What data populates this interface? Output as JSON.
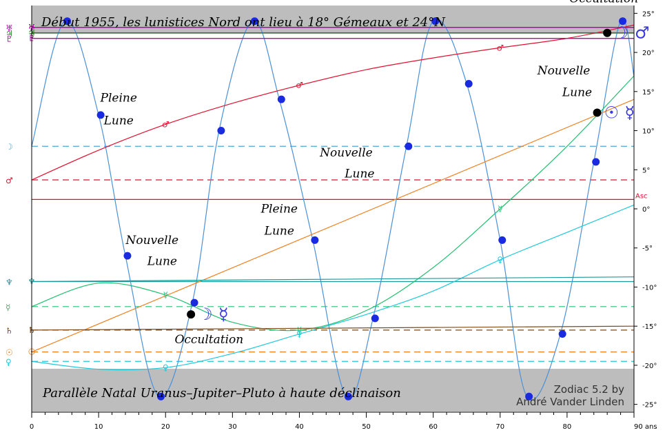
{
  "chart_data": {
    "type": "line",
    "title": "Début 1955, les lunistices Nord ont lieu à 18° Gémeaux et 24°N",
    "subtitle": "Parallèle Natal Uranus–Jupiter–Pluto à haute déclinaison",
    "credit_line1": "Zodiac 5.2 by",
    "credit_line2": "André Vander Linden",
    "x_unit": "ans",
    "xlim": [
      0,
      90
    ],
    "ylim": [
      -26,
      26
    ],
    "x_ticks": [
      0,
      10,
      20,
      30,
      40,
      50,
      60,
      70,
      80,
      90
    ],
    "y_ticks": [
      25,
      20,
      15,
      10,
      5,
      0,
      -5,
      -10,
      -15,
      -20,
      -25
    ],
    "grid": false,
    "natal_lines": [
      {
        "glyph": "♅",
        "value": 23.2,
        "color": "#b000b0",
        "style": "solid"
      },
      {
        "glyph": "♃",
        "value": 22.5,
        "color": "#1a7a1a",
        "style": "solid"
      },
      {
        "glyph": "♇",
        "value": 21.8,
        "color": "#b000b0",
        "style": "solid"
      },
      {
        "glyph": "☽",
        "value": 8.0,
        "color": "#4aa8d8",
        "style": "dashed"
      },
      {
        "glyph": "♂",
        "value": 3.7,
        "color": "#e01030",
        "style": "dashed"
      },
      {
        "glyph": "Asc",
        "value": 1.2,
        "color": "#e01030",
        "style": "solid"
      },
      {
        "glyph": "♆",
        "value": -9.3,
        "color": "#1a9a9a",
        "style": "solid"
      },
      {
        "glyph": "☿",
        "value": -12.5,
        "color": "#22c070",
        "style": "dashed"
      },
      {
        "glyph": "♄",
        "value": -15.5,
        "color": "#7a4a1a",
        "style": "dashed"
      },
      {
        "glyph": "☉",
        "value": -18.3,
        "color": "#f08020",
        "style": "dashed"
      },
      {
        "glyph": "♀",
        "value": -19.5,
        "color": "#20c8d8",
        "style": "dashed"
      }
    ],
    "series": [
      {
        "name": "☽",
        "color": "#4a90d8",
        "x": [
          0,
          5,
          10,
          14,
          19,
          24,
          28,
          33,
          37,
          42,
          47,
          51,
          56,
          60,
          65,
          70,
          74,
          79,
          84,
          88,
          90
        ],
        "y": [
          8,
          24,
          12,
          -6,
          -24,
          -12,
          10,
          24,
          14,
          -4,
          -24,
          -14,
          8,
          24,
          16,
          -4,
          -24,
          -16,
          6,
          24,
          17
        ]
      },
      {
        "name": "♂",
        "color": "#e01030",
        "x": [
          0,
          10,
          20,
          30,
          40,
          50,
          60,
          70,
          80,
          90
        ],
        "y": [
          3.7,
          7.5,
          10.8,
          13.5,
          15.8,
          17.8,
          19.3,
          20.6,
          21.8,
          23.5
        ]
      },
      {
        "name": "☉",
        "color": "#f08020",
        "x": [
          0,
          90
        ],
        "y": [
          -18.3,
          14
        ]
      },
      {
        "name": "☿",
        "color": "#22c070",
        "x": [
          0,
          10,
          20,
          30,
          40,
          50,
          60,
          70,
          80,
          90
        ],
        "y": [
          -12.5,
          -9.5,
          -11,
          -14.5,
          -15.5,
          -13,
          -7.5,
          0,
          8,
          17
        ]
      },
      {
        "name": "♀",
        "color": "#20c8d8",
        "x": [
          0,
          10,
          20,
          30,
          40,
          50,
          60,
          70,
          80,
          90
        ],
        "y": [
          -19.5,
          -20.5,
          -20.3,
          -18.5,
          -16,
          -13.5,
          -10.5,
          -6.5,
          -3,
          0.5
        ]
      },
      {
        "name": "♆",
        "color": "#1a9a9a",
        "x": [
          0,
          90
        ],
        "y": [
          -9.3,
          -8.7
        ]
      },
      {
        "name": "♄",
        "color": "#7a4a1a",
        "x": [
          0,
          90
        ],
        "y": [
          -15.5,
          -15
        ]
      },
      {
        "name": "♅",
        "color": "#b000b0",
        "x": [
          0,
          90
        ],
        "y": [
          23.2,
          23.2
        ]
      },
      {
        "name": "♃",
        "color": "#1a7a1a",
        "x": [
          0,
          90
        ],
        "y": [
          22.5,
          22.5
        ]
      },
      {
        "name": "♇",
        "color": "#b000b0",
        "x": [
          0,
          90
        ],
        "y": [
          21.8,
          21.8
        ]
      }
    ],
    "annotations": [
      {
        "text": "Pleine",
        "x": 13,
        "y": 13.7
      },
      {
        "text": "Lune",
        "x": 13,
        "y": 10.8
      },
      {
        "text": "Nouvelle",
        "x": 47,
        "y": 6.7
      },
      {
        "text": "Lune",
        "x": 49,
        "y": 4
      },
      {
        "text": "Pleine",
        "x": 37,
        "y": -0.5
      },
      {
        "text": "Lune",
        "x": 37,
        "y": -3.3
      },
      {
        "text": "Nouvelle",
        "x": 18,
        "y": -4.5
      },
      {
        "text": "Lune",
        "x": 19.5,
        "y": -7.2
      },
      {
        "text": "Occultation",
        "x": 26.5,
        "y": -17.2
      },
      {
        "text": "Occultation",
        "x": 85.5,
        "y": 26.4
      },
      {
        "text": "Nouvelle",
        "x": 79.5,
        "y": 17.2
      },
      {
        "text": "Lune",
        "x": 81.5,
        "y": 14.4
      }
    ],
    "events": [
      {
        "x": 23.8,
        "y": -13.5,
        "glyphs": "☽ ☿"
      },
      {
        "x": 86,
        "y": 22.5,
        "glyphs": "☽ ♂"
      },
      {
        "x": 84.5,
        "y": 12.3,
        "glyphs": "☉ ☿"
      }
    ]
  }
}
